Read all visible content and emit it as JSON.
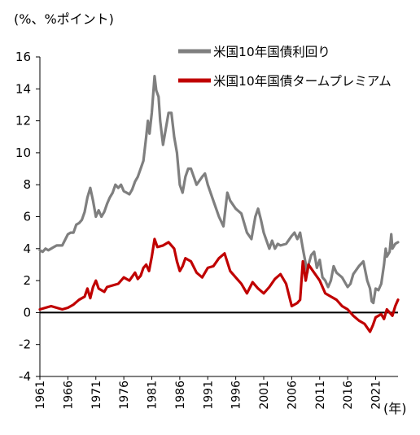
{
  "chart_data": {
    "type": "line",
    "ylabel": "(%、%ポイント)",
    "xunit": "(年)",
    "ylim": [
      -4,
      16
    ],
    "yticks": [
      "16",
      "14",
      "12",
      "10",
      "8",
      "6",
      "4",
      "2",
      "0",
      "-2",
      "-4"
    ],
    "xlim": [
      1961,
      2025
    ],
    "xticks": [
      "1961",
      "1966",
      "1971",
      "1976",
      "1981",
      "1986",
      "1991",
      "1996",
      "2001",
      "2006",
      "2011",
      "2016",
      "2021"
    ],
    "grid": false,
    "legend_position": "top-right",
    "series": [
      {
        "name": "米国10年国債利回り",
        "color": "#7f7f7f",
        "x": [
          1961.0,
          1961.5,
          1962.0,
          1962.5,
          1963.0,
          1963.5,
          1964.0,
          1965.0,
          1966.0,
          1966.5,
          1967.0,
          1967.5,
          1968.0,
          1968.5,
          1969.0,
          1969.5,
          1970.0,
          1970.5,
          1971.0,
          1971.5,
          1972.0,
          1972.5,
          1973.0,
          1973.5,
          1974.0,
          1974.5,
          1975.0,
          1975.5,
          1976.0,
          1976.5,
          1977.0,
          1977.5,
          1978.0,
          1978.5,
          1979.0,
          1979.5,
          1980.0,
          1980.3,
          1980.6,
          1981.0,
          1981.5,
          1981.8,
          1982.2,
          1982.5,
          1983.0,
          1983.5,
          1984.0,
          1984.5,
          1985.0,
          1985.5,
          1986.0,
          1986.5,
          1987.0,
          1987.5,
          1988.0,
          1989.0,
          1990.0,
          1990.5,
          1991.0,
          1992.0,
          1993.0,
          1993.8,
          1994.5,
          1995.0,
          1996.0,
          1997.0,
          1998.0,
          1998.8,
          1999.5,
          2000.0,
          2000.5,
          2001.0,
          2002.0,
          2002.5,
          2003.0,
          2003.5,
          2004.0,
          2005.0,
          2006.0,
          2006.5,
          2007.0,
          2007.5,
          2008.0,
          2008.8,
          2009.0,
          2009.5,
          2010.0,
          2010.5,
          2011.0,
          2011.5,
          2012.0,
          2012.5,
          2013.0,
          2013.5,
          2014.0,
          2015.0,
          2016.0,
          2016.5,
          2017.0,
          2018.0,
          2018.8,
          2019.5,
          2020.0,
          2020.3,
          2020.6,
          2021.0,
          2021.5,
          2022.0,
          2022.5,
          2022.8,
          2023.0,
          2023.5,
          2023.8,
          2024.0,
          2024.5,
          2025.0
        ],
        "values": [
          3.9,
          3.8,
          4.0,
          3.9,
          4.0,
          4.1,
          4.2,
          4.2,
          4.9,
          5.0,
          5.0,
          5.5,
          5.6,
          5.8,
          6.3,
          7.2,
          7.8,
          7.0,
          6.0,
          6.4,
          6.0,
          6.3,
          6.8,
          7.2,
          7.5,
          8.0,
          7.8,
          8.0,
          7.6,
          7.5,
          7.4,
          7.7,
          8.2,
          8.5,
          9.0,
          9.5,
          11.0,
          12.0,
          11.2,
          12.5,
          14.8,
          13.9,
          13.5,
          12.0,
          10.5,
          11.5,
          12.5,
          12.5,
          11.0,
          10.0,
          8.0,
          7.5,
          8.5,
          9.0,
          9.0,
          8.0,
          8.5,
          8.7,
          8.0,
          7.0,
          6.0,
          5.4,
          7.5,
          7.0,
          6.5,
          6.2,
          5.0,
          4.6,
          6.0,
          6.5,
          5.8,
          5.0,
          4.0,
          4.5,
          4.0,
          4.3,
          4.2,
          4.3,
          4.8,
          5.0,
          4.6,
          5.0,
          4.0,
          2.5,
          3.0,
          3.6,
          3.8,
          2.8,
          3.3,
          2.2,
          2.0,
          1.6,
          2.0,
          2.9,
          2.5,
          2.2,
          1.6,
          1.8,
          2.4,
          2.9,
          3.2,
          2.0,
          1.5,
          0.7,
          0.6,
          1.5,
          1.4,
          1.8,
          3.0,
          4.0,
          3.5,
          3.8,
          4.9,
          4.0,
          4.3,
          4.4
        ]
      },
      {
        "name": "米国10年国債タームプレミアム",
        "color": "#c00000",
        "x": [
          1961.0,
          1962.0,
          1963.0,
          1964.0,
          1965.0,
          1966.0,
          1967.0,
          1968.0,
          1969.0,
          1969.5,
          1970.0,
          1970.5,
          1971.0,
          1971.5,
          1972.0,
          1972.5,
          1973.0,
          1974.0,
          1975.0,
          1976.0,
          1977.0,
          1978.0,
          1978.5,
          1979.0,
          1979.5,
          1980.0,
          1980.5,
          1981.0,
          1981.5,
          1982.0,
          1983.0,
          1984.0,
          1985.0,
          1985.5,
          1986.0,
          1986.5,
          1987.0,
          1988.0,
          1989.0,
          1990.0,
          1991.0,
          1992.0,
          1993.0,
          1994.0,
          1995.0,
          1996.0,
          1997.0,
          1998.0,
          1999.0,
          2000.0,
          2001.0,
          2002.0,
          2003.0,
          2004.0,
          2005.0,
          2006.0,
          2007.0,
          2007.5,
          2008.0,
          2008.5,
          2009.0,
          2010.0,
          2011.0,
          2012.0,
          2013.0,
          2014.0,
          2015.0,
          2016.0,
          2017.0,
          2018.0,
          2019.0,
          2020.0,
          2020.5,
          2021.0,
          2022.0,
          2022.5,
          2023.0,
          2024.0,
          2024.5,
          2025.0
        ],
        "values": [
          0.2,
          0.3,
          0.4,
          0.3,
          0.2,
          0.3,
          0.5,
          0.8,
          1.0,
          1.5,
          0.9,
          1.6,
          2.0,
          1.5,
          1.4,
          1.3,
          1.6,
          1.7,
          1.8,
          2.2,
          2.0,
          2.5,
          2.1,
          2.3,
          2.8,
          3.0,
          2.6,
          3.5,
          4.6,
          4.1,
          4.2,
          4.4,
          4.0,
          3.2,
          2.6,
          2.9,
          3.4,
          3.2,
          2.5,
          2.2,
          2.8,
          2.9,
          3.4,
          3.7,
          2.6,
          2.2,
          1.8,
          1.2,
          1.9,
          1.5,
          1.2,
          1.6,
          2.1,
          2.4,
          1.8,
          0.4,
          0.6,
          0.8,
          3.2,
          2.0,
          3.0,
          2.5,
          2.0,
          1.2,
          1.0,
          0.8,
          0.4,
          0.2,
          -0.2,
          -0.5,
          -0.7,
          -1.2,
          -0.8,
          -0.3,
          -0.1,
          -0.4,
          0.2,
          -0.2,
          0.4,
          0.8
        ]
      }
    ]
  }
}
